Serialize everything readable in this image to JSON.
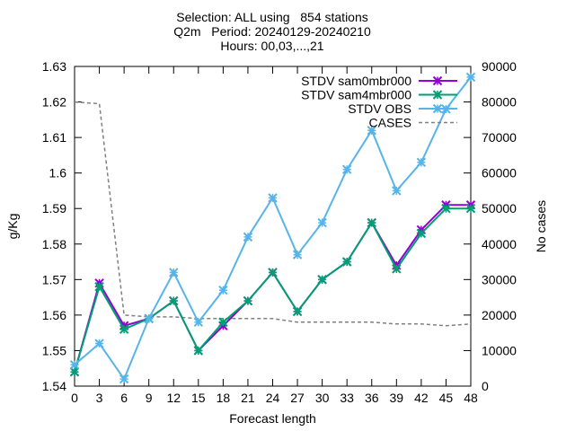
{
  "title_lines": [
    "Selection: ALL using   854 stations",
    "Q2m   Period: 20240129-20240210",
    "Hours: 00,03,...,21"
  ],
  "chart_data": {
    "type": "line",
    "xlabel": "Forecast length",
    "ylabel": "g/Kg",
    "y2label": "No cases",
    "x": [
      0,
      3,
      6,
      9,
      12,
      15,
      18,
      21,
      24,
      27,
      30,
      33,
      36,
      39,
      42,
      45,
      48
    ],
    "xlim": [
      0,
      48
    ],
    "ylim": [
      1.54,
      1.63
    ],
    "y2lim": [
      0,
      90000
    ],
    "yticks": [
      "1.54",
      "1.55",
      "1.56",
      "1.57",
      "1.58",
      "1.59",
      "1.6",
      "1.61",
      "1.62",
      "1.63"
    ],
    "y2ticks": [
      "0",
      "10000",
      "20000",
      "30000",
      "40000",
      "50000",
      "60000",
      "70000",
      "80000",
      "90000"
    ],
    "legend_position": "top-right",
    "grid": false,
    "series": [
      {
        "name": "STDV sam0mbr000",
        "color": "#9400d3",
        "axis": "y1",
        "marker": "x",
        "values": [
          1.544,
          1.569,
          1.557,
          1.559,
          1.564,
          1.55,
          1.557,
          1.564,
          1.572,
          1.561,
          1.57,
          1.575,
          1.586,
          1.574,
          1.584,
          1.591,
          1.591
        ]
      },
      {
        "name": "STDV sam4mbr000",
        "color": "#009e73",
        "axis": "y1",
        "marker": "x",
        "values": [
          1.544,
          1.568,
          1.556,
          1.559,
          1.564,
          1.55,
          1.558,
          1.564,
          1.572,
          1.561,
          1.57,
          1.575,
          1.586,
          1.573,
          1.583,
          1.59,
          1.59
        ]
      },
      {
        "name": "STDV OBS",
        "color": "#56b4e9",
        "axis": "y1",
        "marker": "x",
        "values": [
          1.546,
          1.552,
          1.542,
          1.559,
          1.572,
          1.558,
          1.567,
          1.582,
          1.593,
          1.577,
          1.586,
          1.601,
          1.612,
          1.595,
          1.603,
          1.618,
          1.627
        ]
      },
      {
        "name": "CASES",
        "color": "#808080",
        "axis": "y2",
        "dashed": true,
        "values": [
          80000,
          79500,
          20000,
          19500,
          19500,
          19000,
          19000,
          19000,
          19000,
          18000,
          18000,
          18000,
          18000,
          17500,
          17500,
          17000,
          17500
        ]
      }
    ]
  }
}
